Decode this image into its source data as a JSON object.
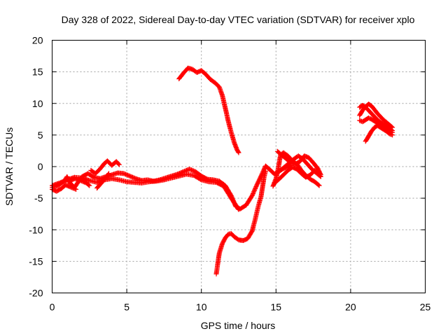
{
  "chart_data": {
    "type": "scatter",
    "title": "Day 328 of 2022, Sidereal Day-to-day VTEC variation (SDTVAR) for receiver xplo",
    "xlabel": "GPS time / hours",
    "ylabel": "SDTVAR / TECUs",
    "xlim": [
      0,
      25
    ],
    "ylim": [
      -20,
      20
    ],
    "xticks": [
      0,
      5,
      10,
      15,
      20,
      25
    ],
    "yticks": [
      -20,
      -15,
      -10,
      -5,
      0,
      5,
      10,
      15,
      20
    ],
    "grid": true,
    "marker": "+",
    "series": [
      {
        "name": "SDTVAR",
        "color": "#ff0000",
        "tracks": [
          [
            [
              0.0,
              -3.3
            ],
            [
              0.4,
              -3.0
            ],
            [
              0.8,
              -2.3
            ],
            [
              1.0,
              -1.6
            ],
            [
              1.2,
              -2.6
            ],
            [
              1.5,
              -3.3
            ],
            [
              1.7,
              -2.6
            ],
            [
              2.0,
              -1.6
            ],
            [
              2.4,
              -1.1
            ],
            [
              2.8,
              -1.7
            ],
            [
              3.2,
              -1.9
            ],
            [
              3.6,
              -1.6
            ],
            [
              4.0,
              -1.3
            ],
            [
              4.4,
              -1.0
            ],
            [
              4.8,
              -1.1
            ],
            [
              5.2,
              -1.5
            ],
            [
              5.6,
              -1.9
            ],
            [
              6.0,
              -2.2
            ],
            [
              6.4,
              -2.1
            ],
            [
              6.8,
              -2.3
            ],
            [
              7.2,
              -2.1
            ],
            [
              7.6,
              -1.8
            ],
            [
              8.0,
              -1.5
            ],
            [
              8.4,
              -1.2
            ],
            [
              8.8,
              -0.8
            ],
            [
              9.2,
              -0.4
            ],
            [
              9.6,
              -0.8
            ],
            [
              10.0,
              -1.5
            ],
            [
              10.4,
              -2.0
            ],
            [
              10.8,
              -2.1
            ],
            [
              11.2,
              -2.3
            ],
            [
              11.6,
              -3.0
            ],
            [
              12.0,
              -4.6
            ],
            [
              12.3,
              -6.3
            ],
            [
              12.6,
              -6.7
            ],
            [
              13.0,
              -6.1
            ],
            [
              13.4,
              -4.6
            ],
            [
              13.7,
              -3.0
            ],
            [
              14.0,
              -1.5
            ],
            [
              14.3,
              0.1
            ],
            [
              14.6,
              -0.5
            ],
            [
              14.9,
              -1.2
            ],
            [
              15.2,
              -0.7
            ],
            [
              15.5,
              -0.3
            ],
            [
              15.8,
              0.0
            ],
            [
              16.0,
              0.2
            ]
          ],
          [
            [
              0.0,
              -3.0
            ],
            [
              0.5,
              -2.6
            ],
            [
              1.0,
              -2.1
            ],
            [
              1.5,
              -1.7
            ],
            [
              2.0,
              -1.8
            ],
            [
              2.5,
              -2.2
            ],
            [
              3.0,
              -2.5
            ],
            [
              3.5,
              -2.1
            ],
            [
              4.0,
              -1.9
            ],
            [
              4.5,
              -2.1
            ],
            [
              5.0,
              -2.4
            ],
            [
              5.5,
              -2.5
            ],
            [
              6.0,
              -2.6
            ],
            [
              6.5,
              -2.4
            ],
            [
              7.0,
              -2.3
            ],
            [
              7.5,
              -2.1
            ],
            [
              8.0,
              -1.8
            ],
            [
              8.5,
              -1.5
            ],
            [
              9.0,
              -1.2
            ],
            [
              9.5,
              -1.4
            ],
            [
              10.0,
              -2.1
            ],
            [
              10.5,
              -2.4
            ],
            [
              11.0,
              -2.5
            ],
            [
              11.5,
              -3.1
            ],
            [
              12.0,
              -5.0
            ],
            [
              12.5,
              -6.8
            ]
          ],
          [
            [
              0.0,
              -3.6
            ],
            [
              0.3,
              -3.9
            ],
            [
              0.6,
              -3.5
            ],
            [
              0.9,
              -2.9
            ],
            [
              1.2,
              -3.2
            ],
            [
              1.6,
              -3.6
            ]
          ],
          [
            [
              1.1,
              -2.4
            ],
            [
              1.5,
              -1.9
            ],
            [
              1.9,
              -2.2
            ],
            [
              2.3,
              -2.6
            ],
            [
              2.5,
              -3.0
            ]
          ],
          [
            [
              2.6,
              -0.6
            ],
            [
              2.9,
              -1.1
            ],
            [
              3.2,
              -0.4
            ],
            [
              3.5,
              0.5
            ],
            [
              3.7,
              0.9
            ],
            [
              4.0,
              0.2
            ],
            [
              4.3,
              0.8
            ],
            [
              4.5,
              0.3
            ]
          ],
          [
            [
              3.0,
              -3.4
            ],
            [
              3.3,
              -2.6
            ],
            [
              3.6,
              -1.7
            ],
            [
              3.8,
              -1.1
            ]
          ],
          [
            [
              8.5,
              13.9
            ],
            [
              8.8,
              14.8
            ],
            [
              9.1,
              15.6
            ],
            [
              9.4,
              15.4
            ],
            [
              9.7,
              14.9
            ],
            [
              10.0,
              15.2
            ],
            [
              10.3,
              14.6
            ],
            [
              10.6,
              13.8
            ],
            [
              10.9,
              13.3
            ],
            [
              11.2,
              12.6
            ],
            [
              11.4,
              11.3
            ],
            [
              11.6,
              9.3
            ],
            [
              11.8,
              7.2
            ],
            [
              12.0,
              5.4
            ],
            [
              12.2,
              3.8
            ],
            [
              12.4,
              2.6
            ],
            [
              12.5,
              2.2
            ]
          ],
          [
            [
              11.0,
              -17.0
            ],
            [
              11.1,
              -15.3
            ],
            [
              11.2,
              -13.7
            ],
            [
              11.4,
              -12.2
            ],
            [
              11.6,
              -11.3
            ],
            [
              11.8,
              -10.7
            ],
            [
              12.0,
              -10.6
            ],
            [
              12.2,
              -11.1
            ],
            [
              12.5,
              -11.6
            ],
            [
              12.8,
              -11.7
            ],
            [
              13.1,
              -11.4
            ],
            [
              13.4,
              -10.2
            ],
            [
              13.6,
              -8.4
            ],
            [
              13.8,
              -6.4
            ],
            [
              14.0,
              -4.7
            ],
            [
              14.1,
              -3.2
            ],
            [
              14.2,
              -1.7
            ],
            [
              14.3,
              -0.7
            ]
          ],
          [
            [
              14.8,
              -3.1
            ],
            [
              15.0,
              -1.9
            ],
            [
              15.1,
              -0.9
            ],
            [
              15.2,
              0.4
            ],
            [
              15.3,
              1.8
            ],
            [
              15.5,
              2.2
            ],
            [
              15.8,
              1.7
            ],
            [
              16.1,
              0.9
            ],
            [
              16.4,
              0.4
            ],
            [
              16.7,
              -0.6
            ],
            [
              17.0,
              -1.4
            ],
            [
              17.3,
              -2.0
            ],
            [
              17.6,
              -2.4
            ],
            [
              17.9,
              -3.0
            ]
          ],
          [
            [
              15.1,
              2.4
            ],
            [
              15.4,
              1.8
            ],
            [
              15.7,
              1.2
            ],
            [
              16.0,
              0.6
            ],
            [
              16.3,
              0.4
            ],
            [
              16.6,
              0.8
            ],
            [
              16.9,
              1.7
            ],
            [
              17.2,
              1.4
            ],
            [
              17.5,
              0.6
            ],
            [
              17.8,
              -0.3
            ],
            [
              18.0,
              -1.3
            ]
          ],
          [
            [
              15.0,
              -1.2
            ],
            [
              15.3,
              -0.6
            ],
            [
              15.6,
              0.0
            ],
            [
              15.9,
              0.6
            ],
            [
              16.2,
              1.2
            ],
            [
              16.5,
              1.7
            ],
            [
              16.8,
              1.2
            ],
            [
              17.1,
              0.4
            ],
            [
              17.4,
              -0.4
            ],
            [
              17.7,
              -1.0
            ],
            [
              18.0,
              -1.6
            ]
          ],
          [
            [
              14.9,
              -2.6
            ],
            [
              15.2,
              -2.0
            ],
            [
              15.5,
              -1.3
            ],
            [
              15.8,
              -0.6
            ],
            [
              16.1,
              -0.1
            ],
            [
              16.4,
              -0.4
            ],
            [
              16.7,
              -1.1
            ],
            [
              17.0,
              -1.7
            ],
            [
              17.3,
              -1.3
            ],
            [
              17.6,
              -0.6
            ],
            [
              17.9,
              -1.1
            ]
          ],
          [
            [
              20.6,
              9.4
            ],
            [
              20.8,
              9.7
            ],
            [
              21.0,
              9.4
            ],
            [
              21.2,
              8.9
            ],
            [
              21.4,
              8.4
            ],
            [
              21.6,
              7.9
            ],
            [
              21.8,
              7.4
            ],
            [
              22.0,
              7.0
            ],
            [
              22.2,
              6.7
            ],
            [
              22.4,
              6.4
            ],
            [
              22.6,
              6.0
            ],
            [
              22.8,
              5.7
            ]
          ],
          [
            [
              20.6,
              8.1
            ],
            [
              20.8,
              8.9
            ],
            [
              21.0,
              9.5
            ],
            [
              21.2,
              9.9
            ],
            [
              21.4,
              9.6
            ],
            [
              21.6,
              9.0
            ],
            [
              21.8,
              8.4
            ],
            [
              22.0,
              7.9
            ],
            [
              22.2,
              7.4
            ],
            [
              22.4,
              7.0
            ],
            [
              22.6,
              6.6
            ],
            [
              22.8,
              6.2
            ]
          ],
          [
            [
              20.6,
              7.3
            ],
            [
              20.8,
              7.1
            ],
            [
              21.0,
              7.4
            ],
            [
              21.2,
              7.7
            ],
            [
              21.4,
              7.5
            ],
            [
              21.6,
              7.2
            ],
            [
              21.8,
              6.9
            ],
            [
              22.0,
              6.5
            ],
            [
              22.2,
              6.2
            ],
            [
              22.4,
              5.9
            ],
            [
              22.6,
              5.6
            ],
            [
              22.8,
              5.4
            ]
          ],
          [
            [
              21.0,
              4.0
            ],
            [
              21.2,
              4.8
            ],
            [
              21.4,
              5.6
            ],
            [
              21.6,
              6.2
            ],
            [
              21.8,
              6.5
            ],
            [
              22.0,
              6.2
            ],
            [
              22.2,
              5.9
            ],
            [
              22.4,
              5.6
            ],
            [
              22.6,
              5.2
            ],
            [
              22.8,
              5.0
            ]
          ]
        ]
      }
    ]
  }
}
